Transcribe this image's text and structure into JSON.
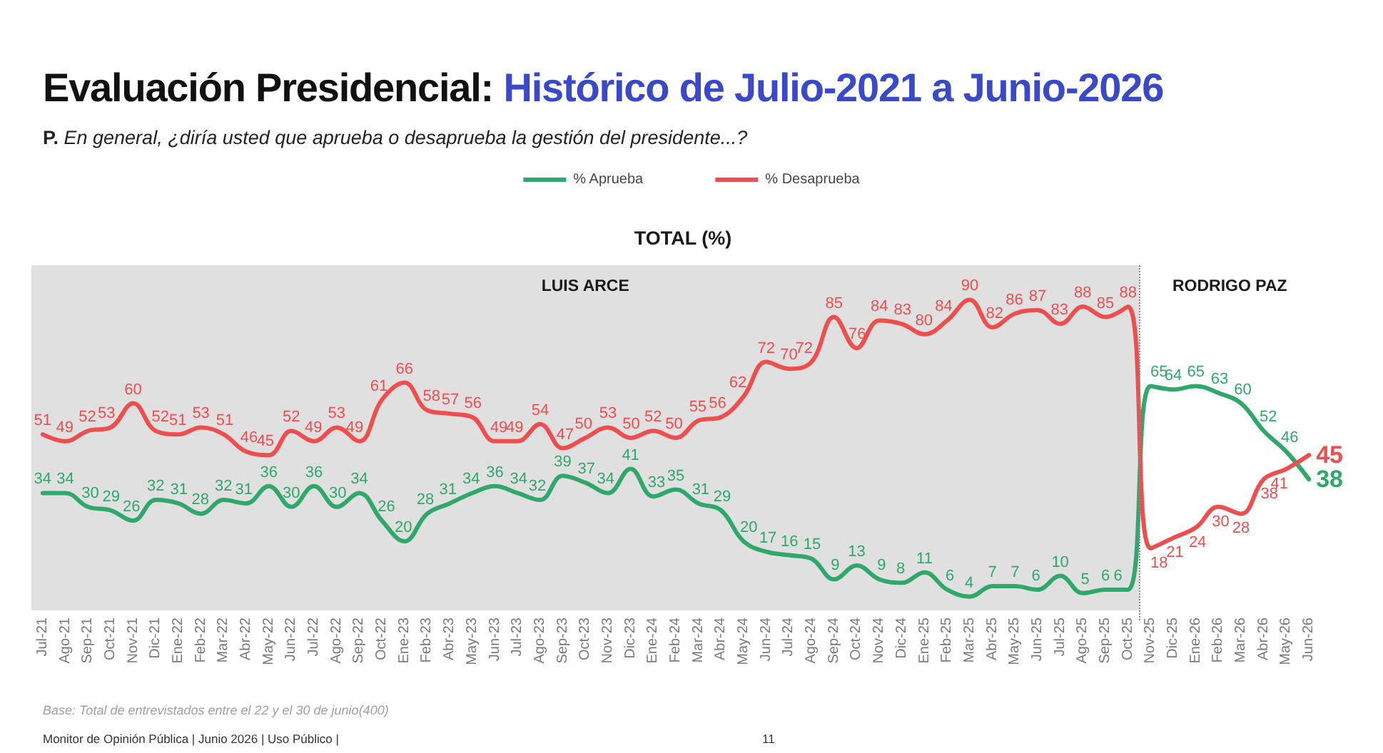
{
  "chart_data": {
    "type": "line",
    "title": "Evaluación Presidencial: Histórico de Julio-2021 a Junio-2026",
    "subtitle": "P. En general, ¿diría usted que aprueba o desaprueba la gestión del presidente...?",
    "annotations": [
      "TOTAL (%)",
      "Base: Total de entrevistados entre el 22 y el 30 de junio(400)",
      "Monitor de Opinión Pública | Junio 2026 | Uso Público |",
      "11"
    ],
    "categories": [
      "Jul-21",
      "Ago-21",
      "Sep-21",
      "Oct-21",
      "Nov-21",
      "Dic-21",
      "Ene-22",
      "Feb-22",
      "Mar-22",
      "Abr-22",
      "May-22",
      "Jun-22",
      "Jul-22",
      "Ago-22",
      "Sep-22",
      "Oct-22",
      "Ene-23",
      "Feb-23",
      "Abr-23",
      "May-23",
      "Jun-23",
      "Jul-23",
      "Ago-23",
      "Sep-23",
      "Oct-23",
      "Nov-23",
      "Dic-23",
      "Ene-24",
      "Feb-24",
      "Mar-24",
      "Abr-24",
      "May-24",
      "Jun-24",
      "Jul-24",
      "Ago-24",
      "Sep-24",
      "Oct-24",
      "Nov-24",
      "Dic-24",
      "Ene-25",
      "Feb-25",
      "Mar-25",
      "Abr-25",
      "May-25",
      "Jun-25",
      "Jul-25",
      "Ago-25",
      "Sep-25",
      "Oct-25",
      "Nov-25",
      "Dic-25",
      "Ene-26",
      "Feb-26",
      "Mar-26",
      "Abr-26",
      "May-26",
      "Jun-26"
    ],
    "series": [
      {
        "name": "% Aprueba",
        "color": "#2fa86a",
        "values": [
          34,
          34,
          30,
          29,
          26,
          32,
          31,
          28,
          32,
          31,
          36,
          30,
          36,
          30,
          34,
          26,
          20,
          28,
          31,
          34,
          36,
          34,
          32,
          39,
          37,
          34,
          41,
          33,
          35,
          31,
          29,
          20,
          17,
          16,
          15,
          9,
          13,
          9,
          8,
          11,
          6,
          4,
          7,
          7,
          6,
          10,
          5,
          6,
          6,
          65,
          64,
          65,
          63,
          60,
          52,
          46,
          38
        ]
      },
      {
        "name": "% Desaprueba",
        "color": "#ef4e4e",
        "values": [
          51,
          49,
          52,
          53,
          60,
          52,
          51,
          53,
          51,
          46,
          45,
          52,
          49,
          53,
          49,
          61,
          66,
          58,
          57,
          56,
          49,
          49,
          54,
          47,
          50,
          53,
          50,
          52,
          50,
          55,
          56,
          62,
          72,
          70,
          72,
          85,
          76,
          84,
          83,
          80,
          84,
          90,
          82,
          86,
          87,
          83,
          88,
          85,
          88,
          18,
          21,
          24,
          30,
          28,
          38,
          41,
          45
        ]
      }
    ],
    "ylim": [
      0,
      100
    ],
    "tick_labels": "x",
    "data_labels": true,
    "legend": "top",
    "marker": "none",
    "bands": [
      {
        "axis": "x",
        "from": "Jul-21",
        "to": "Oct-25",
        "label": "LUIS ARCE",
        "color": "#e0e0e0"
      },
      {
        "axis": "x",
        "from": "Nov-25",
        "to": "Jun-26",
        "label": "RODRIGO PAZ",
        "color": "#ffffff"
      }
    ]
  }
}
